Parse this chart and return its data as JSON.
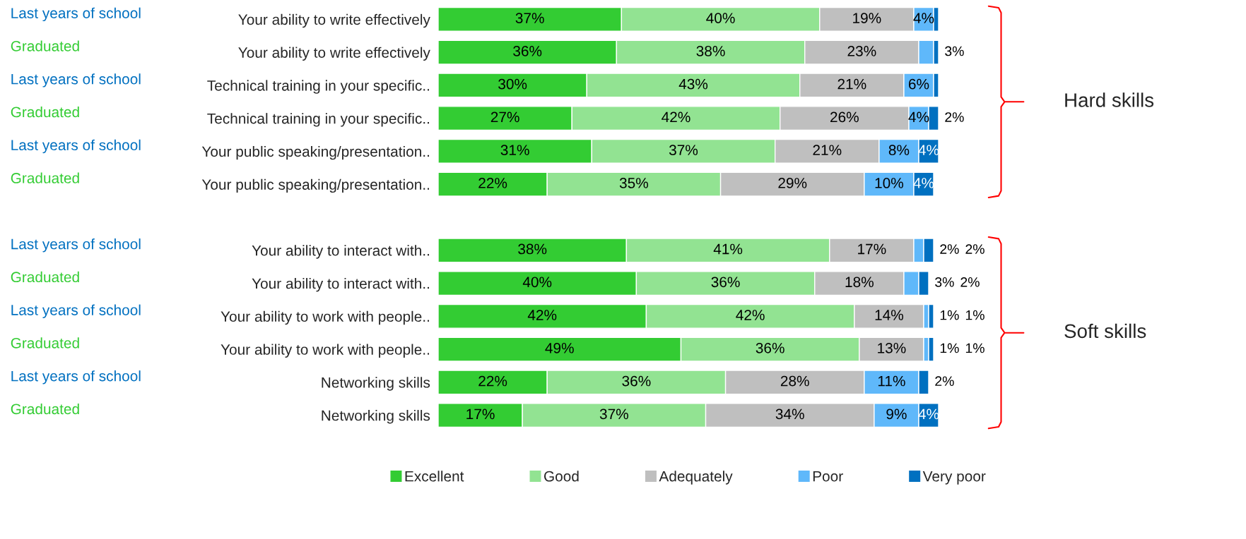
{
  "chart_data": {
    "type": "bar",
    "orientation": "horizontal",
    "stacked": true,
    "legend": "bottom",
    "grid": false,
    "tick_labels": "y",
    "categories": [
      "Your ability to write effectively",
      "Your ability to write effectively",
      "Technical training in your specific..",
      "Technical training in your specific..",
      "Your public speaking/presentation..",
      "Your public speaking/presentation..",
      null,
      "Your ability to interact with..",
      "Your ability to interact with..",
      "Your ability to work with people..",
      "Your ability to work with people..",
      "Networking skills",
      "Networking skills"
    ],
    "series": [
      {
        "name": "Excellent",
        "color": "#33cc33",
        "values": [
          37,
          36,
          30,
          27,
          31,
          22,
          null,
          38,
          40,
          42,
          49,
          22,
          17
        ],
        "value_labels": [
          "37%",
          "36%",
          "30%",
          "27%",
          "31%",
          "22%",
          null,
          "38%",
          "40%",
          "42%",
          "49%",
          "22%",
          "17%"
        ]
      },
      {
        "name": "Good",
        "color": "#92e392",
        "values": [
          40,
          38,
          43,
          42,
          37,
          35,
          null,
          41,
          36,
          42,
          36,
          36,
          37
        ],
        "value_labels": [
          "40%",
          "38%",
          "43%",
          "42%",
          "37%",
          "35%",
          null,
          "41%",
          "36%",
          "42%",
          "36%",
          "36%",
          "37%"
        ]
      },
      {
        "name": "Adequately",
        "color": "#bfbfbf",
        "values": [
          19,
          23,
          21,
          26,
          21,
          29,
          null,
          17,
          18,
          14,
          13,
          28,
          34
        ],
        "value_labels": [
          "19%",
          "23%",
          "21%",
          "26%",
          "21%",
          "29%",
          null,
          "17%",
          "18%",
          "14%",
          "13%",
          "28%",
          "34%"
        ]
      },
      {
        "name": "Poor",
        "color": "#5fb8fa",
        "values": [
          4,
          3,
          6,
          4,
          8,
          10,
          null,
          2,
          3,
          1,
          1,
          11,
          9
        ],
        "value_labels": [
          "4%",
          "3%",
          "6%",
          "4%",
          "8%",
          "10%",
          null,
          "2%",
          "3%",
          "1%",
          "1%",
          "11%",
          "9%"
        ]
      },
      {
        "name": "Very poor",
        "color": "#0070c0",
        "values": [
          1,
          1,
          1,
          2,
          4,
          4,
          null,
          2,
          2,
          1,
          1,
          2,
          4
        ],
        "value_labels": [
          null,
          null,
          null,
          "2%",
          "4%",
          "4%",
          null,
          "2%",
          "2%",
          "1%",
          "1%",
          "2%",
          "4%"
        ]
      }
    ],
    "annotations": [
      "Last years of school",
      "Graduated",
      "Last years of school",
      "Graduated",
      "Last years of school",
      "Graduated",
      "Last years of school",
      "Graduated",
      "Last years of school",
      "Graduated",
      "Last years of school",
      "Graduated",
      "Hard skills",
      "Soft skills"
    ]
  }
}
